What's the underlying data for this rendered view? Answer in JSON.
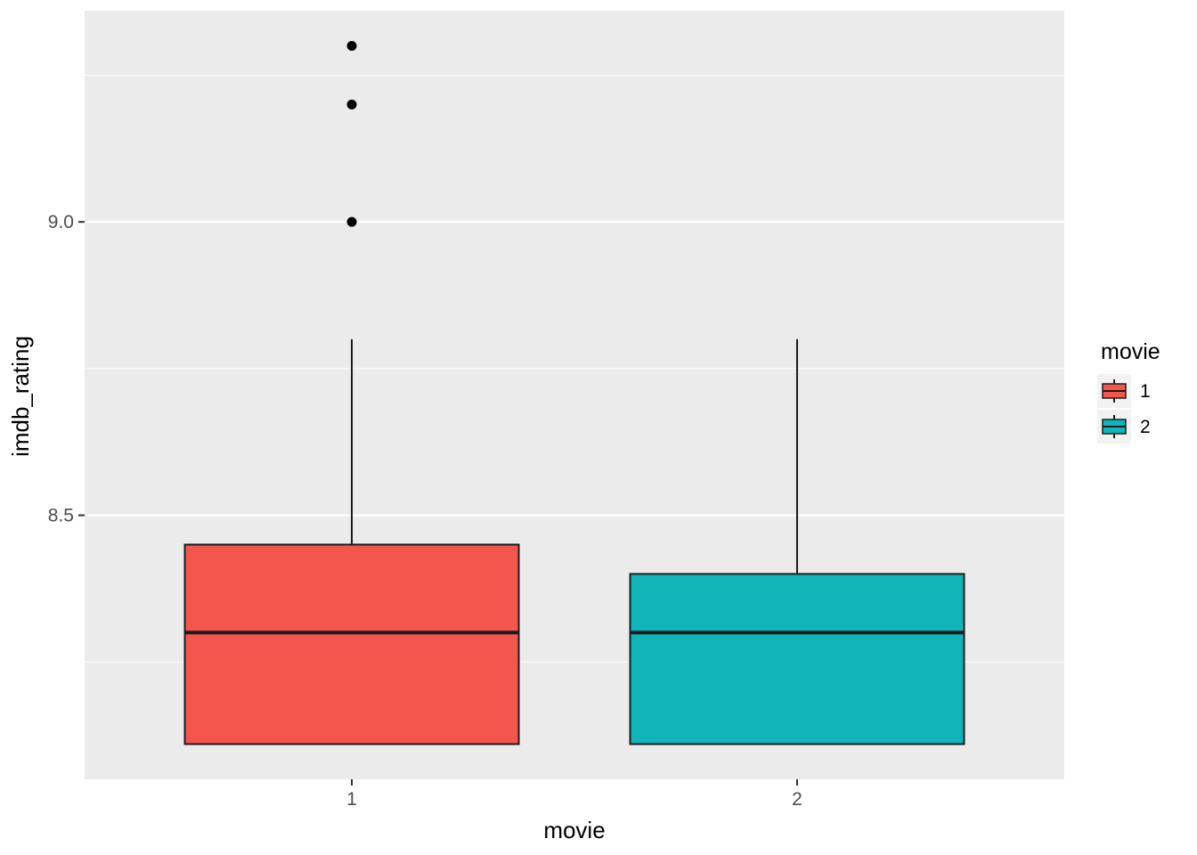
{
  "page": {
    "background": "#FFFFFF"
  },
  "chart_data": {
    "type": "boxplot",
    "title": "",
    "xlabel": "movie",
    "ylabel": "imdb_rating",
    "categories": [
      "1",
      "2"
    ],
    "ylim": [
      8.05,
      9.36
    ],
    "y_major_ticks": [
      {
        "value": 8.5,
        "label": "8.5"
      },
      {
        "value": 9.0,
        "label": "9.0"
      }
    ],
    "y_minor_ticks": [
      8.25,
      8.75,
      9.25
    ],
    "series": [
      {
        "name": "1",
        "fill": "#F4564E",
        "min": 8.11,
        "q1": 8.11,
        "median": 8.3,
        "q3": 8.45,
        "max": 8.8,
        "outliers": [
          9.0,
          9.2,
          9.3
        ]
      },
      {
        "name": "2",
        "fill": "#10B5BA",
        "min": 8.11,
        "q1": 8.11,
        "median": 8.3,
        "q3": 8.4,
        "max": 8.8,
        "outliers": []
      }
    ],
    "legend": {
      "title": "movie",
      "position": "right",
      "entries": [
        {
          "label": "1",
          "fill": "#F4564E"
        },
        {
          "label": "2",
          "fill": "#10B5BA"
        }
      ]
    },
    "colors": {
      "panel_bg": "#EBEBEB",
      "grid_major": "#FFFFFF",
      "grid_minor": "#FFFFFF",
      "box_stroke": "#1C1C1C",
      "median": "#1C1C1C",
      "outlier": "#000000",
      "tick_mark": "#333333",
      "tick_label": "#4D4D4D",
      "axis_title": "#000000",
      "legend_key_bg": "#F2F2F2",
      "legend_label": "#000000"
    },
    "layout_hints": {
      "grid": "on",
      "legend_position": "right"
    }
  }
}
